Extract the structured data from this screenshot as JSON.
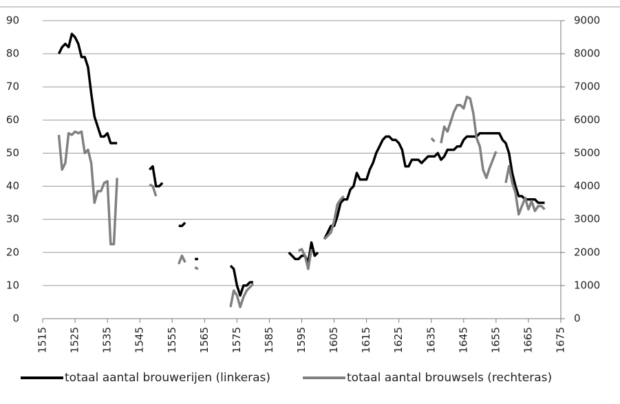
{
  "chart_data": {
    "type": "line",
    "x": [
      1520,
      1521,
      1522,
      1523,
      1524,
      1525,
      1526,
      1527,
      1528,
      1529,
      1530,
      1531,
      1532,
      1533,
      1534,
      1535,
      1536,
      1537,
      1538,
      1539,
      1540,
      1541,
      1542,
      1543,
      1544,
      1545,
      1546,
      1547,
      1548,
      1549,
      1550,
      1551,
      1552,
      1553,
      1554,
      1555,
      1556,
      1557,
      1558,
      1559,
      1560,
      1561,
      1562,
      1563,
      1564,
      1565,
      1566,
      1567,
      1568,
      1569,
      1570,
      1571,
      1572,
      1573,
      1574,
      1575,
      1576,
      1577,
      1578,
      1579,
      1580,
      1581,
      1582,
      1583,
      1584,
      1585,
      1586,
      1587,
      1588,
      1589,
      1590,
      1591,
      1592,
      1593,
      1594,
      1595,
      1596,
      1597,
      1598,
      1599,
      1600,
      1601,
      1602,
      1603,
      1604,
      1605,
      1606,
      1607,
      1608,
      1609,
      1610,
      1611,
      1612,
      1613,
      1614,
      1615,
      1616,
      1617,
      1618,
      1619,
      1620,
      1621,
      1622,
      1623,
      1624,
      1625,
      1626,
      1627,
      1628,
      1629,
      1630,
      1631,
      1632,
      1633,
      1634,
      1635,
      1636,
      1637,
      1638,
      1639,
      1640,
      1641,
      1642,
      1643,
      1644,
      1645,
      1646,
      1647,
      1648,
      1649,
      1650,
      1651,
      1652,
      1653,
      1654,
      1655,
      1656,
      1657,
      1658,
      1659,
      1660,
      1661,
      1662,
      1663,
      1664,
      1665,
      1666,
      1667,
      1668,
      1669,
      1670
    ],
    "series": [
      {
        "name": "totaal aantal brouwerijen (linkeras)",
        "color": "#000000",
        "axis": "y",
        "values": [
          80,
          82,
          83,
          82,
          86,
          85,
          83,
          79,
          79,
          76,
          68,
          61,
          58,
          55,
          55,
          56,
          53,
          53,
          53,
          null,
          null,
          null,
          null,
          null,
          null,
          null,
          null,
          null,
          45,
          46,
          40,
          40,
          41,
          null,
          null,
          null,
          null,
          28,
          28,
          29,
          null,
          null,
          18,
          18,
          null,
          null,
          null,
          null,
          null,
          null,
          null,
          null,
          null,
          16,
          15,
          10,
          7,
          10,
          10,
          11,
          11,
          null,
          null,
          null,
          null,
          null,
          null,
          null,
          null,
          null,
          null,
          20,
          19,
          18,
          18,
          19,
          19,
          17,
          23,
          19,
          20,
          null,
          24,
          26,
          28,
          28,
          31,
          35,
          36,
          36,
          39,
          40,
          44,
          42,
          42,
          42,
          45,
          47,
          50,
          52,
          54,
          55,
          55,
          54,
          54,
          53,
          51,
          46,
          46,
          48,
          48,
          48,
          47,
          48,
          49,
          49,
          49,
          50,
          48,
          49,
          51,
          51,
          51,
          52,
          52,
          54,
          55,
          55,
          55,
          55,
          56,
          56,
          56,
          56,
          56,
          56,
          56,
          54,
          53,
          50,
          44,
          40,
          37,
          37,
          36,
          36,
          36,
          36,
          35,
          35,
          35
        ]
      },
      {
        "name": "totaal aantal brouwsels (rechteras)",
        "color": "#808080",
        "axis": "y2",
        "values": [
          5550,
          4500,
          4700,
          5600,
          5550,
          5650,
          5600,
          5650,
          5000,
          5100,
          4700,
          3500,
          3850,
          3850,
          4100,
          4150,
          2250,
          2250,
          4250,
          null,
          null,
          null,
          null,
          null,
          null,
          null,
          null,
          null,
          4050,
          4000,
          3700,
          null,
          null,
          null,
          null,
          null,
          null,
          1650,
          1900,
          1700,
          null,
          null,
          1550,
          1500,
          null,
          null,
          null,
          null,
          null,
          null,
          null,
          null,
          null,
          350,
          850,
          700,
          350,
          650,
          850,
          950,
          1050,
          null,
          null,
          null,
          null,
          null,
          null,
          null,
          null,
          null,
          null,
          null,
          null,
          null,
          2050,
          2100,
          1900,
          1500,
          2100,
          null,
          null,
          null,
          2400,
          2500,
          2600,
          2950,
          3450,
          3600,
          3700,
          null,
          null,
          null,
          null,
          null,
          null,
          null,
          null,
          null,
          null,
          null,
          null,
          null,
          null,
          null,
          null,
          null,
          null,
          null,
          null,
          null,
          null,
          null,
          null,
          null,
          null,
          5450,
          5350,
          null,
          5300,
          5800,
          5650,
          5950,
          6250,
          6450,
          6450,
          6350,
          6700,
          6650,
          6200,
          5450,
          5200,
          4500,
          4250,
          4550,
          4800,
          5050,
          null,
          null,
          4100,
          4600,
          4100,
          3800,
          3150,
          3400,
          3650,
          3300,
          3550,
          3250,
          3400,
          3400,
          3300
        ]
      }
    ],
    "xlim": [
      1515,
      1675
    ],
    "xticks": [
      1515,
      1525,
      1535,
      1545,
      1555,
      1565,
      1575,
      1585,
      1595,
      1605,
      1615,
      1625,
      1635,
      1645,
      1655,
      1665,
      1675
    ],
    "ylim": [
      0,
      90
    ],
    "yticks": [
      0,
      10,
      20,
      30,
      40,
      50,
      60,
      70,
      80,
      90
    ],
    "y2lim": [
      0,
      9000
    ],
    "y2ticks": [
      0,
      1000,
      2000,
      3000,
      4000,
      5000,
      6000,
      7000,
      8000,
      9000
    ],
    "grid": true,
    "legend": "bottom"
  }
}
